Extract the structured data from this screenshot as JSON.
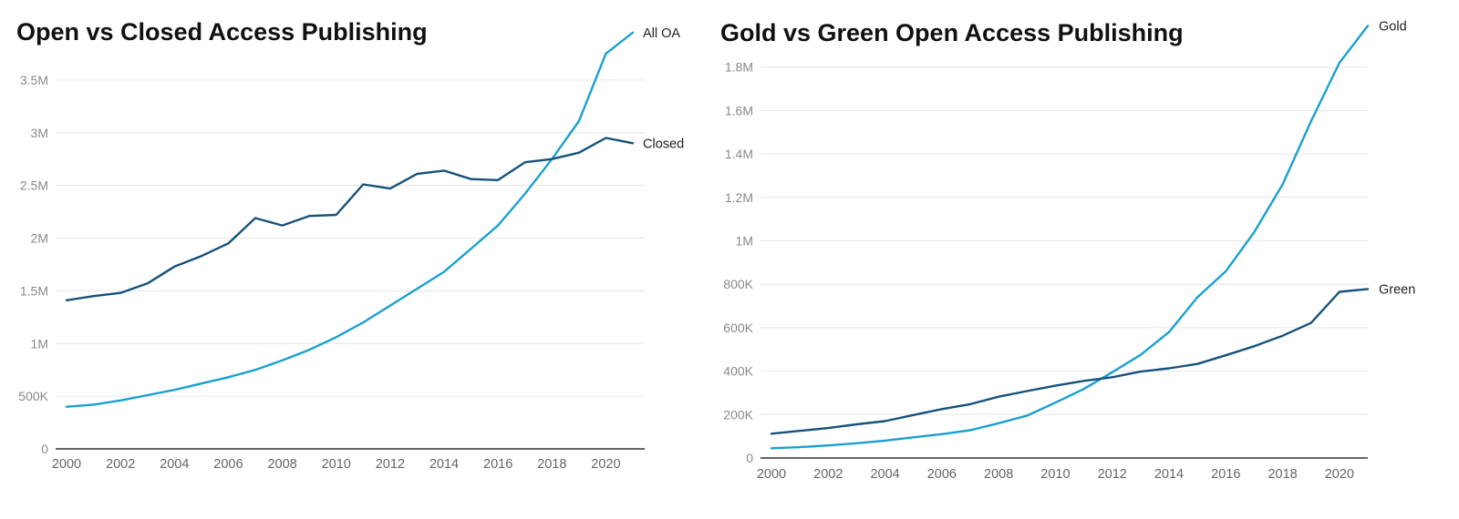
{
  "chart_data": [
    {
      "type": "line",
      "title": "Open vs Closed Access Publishing",
      "xlabel": "",
      "ylabel": "",
      "x": [
        2000,
        2001,
        2002,
        2003,
        2004,
        2005,
        2006,
        2007,
        2008,
        2009,
        2010,
        2011,
        2012,
        2013,
        2014,
        2015,
        2016,
        2017,
        2018,
        2019,
        2020,
        2021
      ],
      "xticks": [
        "2000",
        "2002",
        "2004",
        "2006",
        "2008",
        "2010",
        "2012",
        "2014",
        "2016",
        "2018",
        "2020"
      ],
      "yticks": [
        {
          "value": 0,
          "label": "0"
        },
        {
          "value": 500000,
          "label": "500K"
        },
        {
          "value": 1000000,
          "label": "1M"
        },
        {
          "value": 1500000,
          "label": "1.5M"
        },
        {
          "value": 2000000,
          "label": "2M"
        },
        {
          "value": 2500000,
          "label": "2.5M"
        },
        {
          "value": 3000000,
          "label": "3M"
        },
        {
          "value": 3500000,
          "label": "3.5M"
        }
      ],
      "ylim": [
        0,
        4000000
      ],
      "xlim": [
        2000,
        2021
      ],
      "grid": true,
      "legend": "line-end labels",
      "series": [
        {
          "name": "All OA",
          "color": "#1aa0d0",
          "values": [
            400000,
            420000,
            460000,
            510000,
            560000,
            620000,
            680000,
            750000,
            840000,
            940000,
            1060000,
            1200000,
            1360000,
            1520000,
            1680000,
            1900000,
            2120000,
            2420000,
            2750000,
            3110000,
            3750000,
            3950000
          ]
        },
        {
          "name": "Closed",
          "color": "#16527a",
          "values": [
            1410000,
            1450000,
            1480000,
            1570000,
            1730000,
            1830000,
            1950000,
            2190000,
            2120000,
            2210000,
            2220000,
            2510000,
            2470000,
            2610000,
            2640000,
            2560000,
            2550000,
            2720000,
            2750000,
            2810000,
            2950000,
            2900000
          ]
        }
      ]
    },
    {
      "type": "line",
      "title": "Gold vs Green Open Access Publishing",
      "xlabel": "",
      "ylabel": "",
      "x": [
        2000,
        2001,
        2002,
        2003,
        2004,
        2005,
        2006,
        2007,
        2008,
        2009,
        2010,
        2011,
        2012,
        2013,
        2014,
        2015,
        2016,
        2017,
        2018,
        2019,
        2020,
        2021
      ],
      "xticks": [
        "2000",
        "2002",
        "2004",
        "2006",
        "2008",
        "2010",
        "2012",
        "2014",
        "2016",
        "2018",
        "2020"
      ],
      "yticks": [
        {
          "value": 0,
          "label": "0"
        },
        {
          "value": 200000,
          "label": "200K"
        },
        {
          "value": 400000,
          "label": "400K"
        },
        {
          "value": 600000,
          "label": "600K"
        },
        {
          "value": 800000,
          "label": "800K"
        },
        {
          "value": 1000000,
          "label": "1M"
        },
        {
          "value": 1200000,
          "label": "1.2M"
        },
        {
          "value": 1400000,
          "label": "1.4M"
        },
        {
          "value": 1600000,
          "label": "1.6M"
        },
        {
          "value": 1800000,
          "label": "1.8M"
        }
      ],
      "ylim": [
        0,
        2000000
      ],
      "xlim": [
        2000,
        2021
      ],
      "grid": true,
      "legend": "line-end labels",
      "series": [
        {
          "name": "Gold",
          "color": "#1aa0d0",
          "values": [
            45000,
            50000,
            58000,
            68000,
            80000,
            95000,
            110000,
            128000,
            160000,
            195000,
            255000,
            318000,
            395000,
            475000,
            580000,
            740000,
            860000,
            1040000,
            1260000,
            1550000,
            1820000,
            1990000
          ]
        },
        {
          "name": "Green",
          "color": "#16527a",
          "values": [
            112000,
            125000,
            138000,
            155000,
            170000,
            198000,
            225000,
            248000,
            282000,
            308000,
            333000,
            355000,
            372000,
            398000,
            413000,
            433000,
            473000,
            515000,
            563000,
            622000,
            765000,
            778000
          ]
        }
      ]
    }
  ]
}
